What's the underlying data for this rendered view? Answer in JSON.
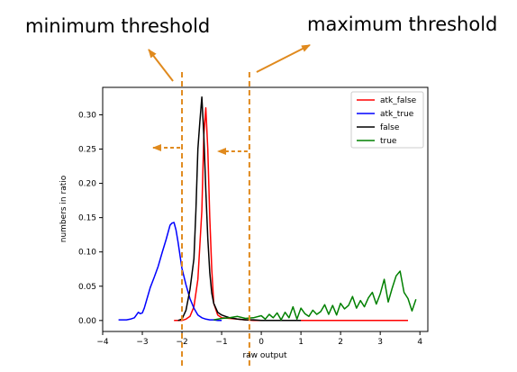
{
  "annotations": {
    "min_label": "minimum threshold",
    "max_label": "maximum threshold",
    "color": "#e08a1e"
  },
  "chart_data": {
    "type": "line",
    "xlabel": "raw output",
    "ylabel": "numbers in ratio",
    "xlim": [
      -4,
      4.2
    ],
    "ylim": [
      -0.016,
      0.34
    ],
    "xticks": [
      -4,
      -3,
      -2,
      -1,
      0,
      1,
      2,
      3,
      4
    ],
    "xtick_labels": [
      "−4",
      "−3",
      "−2",
      "−1",
      "0",
      "1",
      "2",
      "3",
      "4"
    ],
    "yticks": [
      0.0,
      0.05,
      0.1,
      0.15,
      0.2,
      0.25,
      0.3
    ],
    "ytick_labels": [
      "0.00",
      "0.05",
      "0.10",
      "0.15",
      "0.20",
      "0.25",
      "0.30"
    ],
    "grid": false,
    "legend_position": "top-right",
    "thresholds": {
      "minimum": -2.0,
      "maximum": -0.3
    },
    "series": [
      {
        "name": "atk_false",
        "color": "#ff0000",
        "x": [
          -2.2,
          -2.0,
          -1.9,
          -1.8,
          -1.7,
          -1.6,
          -1.5,
          -1.45,
          -1.4,
          -1.35,
          -1.3,
          -1.25,
          -1.2,
          -1.1,
          -1.0,
          -0.8,
          -0.6,
          -0.4,
          -0.2,
          0.0,
          0.5,
          1.0,
          1.5,
          2.0,
          2.5,
          3.0,
          3.5,
          3.7
        ],
        "y": [
          0.0,
          0.0,
          0.002,
          0.006,
          0.02,
          0.06,
          0.16,
          0.27,
          0.31,
          0.25,
          0.15,
          0.075,
          0.025,
          0.008,
          0.004,
          0.003,
          0.002,
          0.001,
          0.0,
          0.0,
          0.0,
          0.0,
          0.0,
          0.0,
          0.0,
          0.0,
          0.0,
          0.0
        ]
      },
      {
        "name": "atk_true",
        "color": "#0000ff",
        "x": [
          -3.6,
          -3.5,
          -3.4,
          -3.3,
          -3.2,
          -3.1,
          -3.05,
          -3.0,
          -2.95,
          -2.9,
          -2.8,
          -2.7,
          -2.6,
          -2.5,
          -2.4,
          -2.3,
          -2.25,
          -2.2,
          -2.15,
          -2.1,
          -2.0,
          -1.9,
          -1.8,
          -1.7,
          -1.6,
          -1.5,
          -1.4,
          -1.3,
          -1.2,
          -1.1,
          -1.0
        ],
        "y": [
          0.001,
          0.001,
          0.001,
          0.002,
          0.004,
          0.012,
          0.01,
          0.011,
          0.018,
          0.028,
          0.048,
          0.063,
          0.079,
          0.099,
          0.118,
          0.139,
          0.142,
          0.143,
          0.132,
          0.115,
          0.076,
          0.052,
          0.032,
          0.018,
          0.008,
          0.004,
          0.002,
          0.001,
          0.001,
          0.0,
          0.0
        ]
      },
      {
        "name": "false",
        "color": "#000000",
        "x": [
          -2.1,
          -2.0,
          -1.9,
          -1.8,
          -1.7,
          -1.65,
          -1.6,
          -1.55,
          -1.5,
          -1.45,
          -1.4,
          -1.35,
          -1.3,
          -1.25,
          -1.2,
          -1.1,
          -1.0,
          -0.9,
          -0.8,
          -0.6,
          -0.4,
          -0.2,
          0.0,
          0.2,
          0.5,
          0.8,
          1.0
        ],
        "y": [
          0.0,
          0.002,
          0.015,
          0.045,
          0.09,
          0.16,
          0.25,
          0.29,
          0.326,
          0.27,
          0.19,
          0.12,
          0.07,
          0.04,
          0.025,
          0.012,
          0.008,
          0.006,
          0.004,
          0.002,
          0.001,
          0.001,
          0.0,
          0.0,
          0.0,
          0.0,
          0.0
        ]
      },
      {
        "name": "true",
        "color": "#008000",
        "x": [
          -1.2,
          -1.0,
          -0.8,
          -0.6,
          -0.4,
          -0.2,
          0.0,
          0.1,
          0.2,
          0.3,
          0.4,
          0.5,
          0.6,
          0.7,
          0.8,
          0.9,
          1.0,
          1.1,
          1.2,
          1.3,
          1.4,
          1.5,
          1.6,
          1.7,
          1.8,
          1.9,
          2.0,
          2.1,
          2.2,
          2.3,
          2.4,
          2.5,
          2.6,
          2.7,
          2.8,
          2.9,
          3.0,
          3.1,
          3.2,
          3.3,
          3.4,
          3.5,
          3.6,
          3.7,
          3.8,
          3.9
        ],
        "y": [
          0.001,
          0.003,
          0.004,
          0.006,
          0.003,
          0.004,
          0.007,
          0.002,
          0.009,
          0.004,
          0.011,
          0.001,
          0.012,
          0.004,
          0.02,
          0.002,
          0.018,
          0.01,
          0.006,
          0.015,
          0.009,
          0.013,
          0.023,
          0.009,
          0.022,
          0.008,
          0.025,
          0.017,
          0.022,
          0.035,
          0.018,
          0.029,
          0.02,
          0.033,
          0.041,
          0.024,
          0.039,
          0.06,
          0.027,
          0.047,
          0.065,
          0.072,
          0.041,
          0.032,
          0.014,
          0.031
        ]
      }
    ]
  }
}
